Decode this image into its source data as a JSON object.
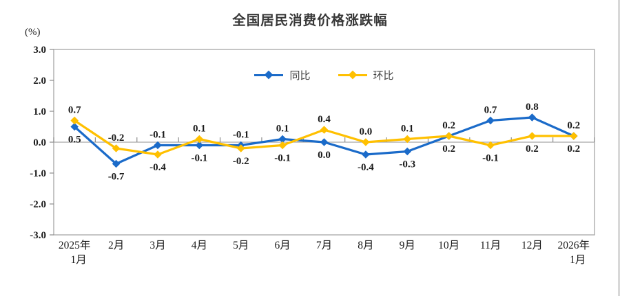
{
  "chart_data": {
    "type": "line",
    "title": "全国居民消费价格涨跌幅",
    "unit_label": "(%)",
    "categories": [
      "2025年\n1月",
      "2月",
      "3月",
      "4月",
      "5月",
      "6月",
      "7月",
      "8月",
      "9月",
      "10月",
      "11月",
      "12月",
      "2026年\n1月"
    ],
    "series": [
      {
        "name": "同比",
        "color": "#1B6BC9",
        "marker": "diamond",
        "values": [
          0.5,
          -0.7,
          -0.1,
          -0.1,
          -0.1,
          0.1,
          0.0,
          -0.4,
          -0.3,
          0.2,
          0.7,
          0.8,
          0.2
        ]
      },
      {
        "name": "环比",
        "color": "#FFC000",
        "marker": "diamond",
        "values": [
          0.7,
          -0.2,
          -0.4,
          0.1,
          -0.2,
          -0.1,
          0.4,
          0.0,
          0.1,
          0.2,
          -0.1,
          0.2,
          0.2
        ]
      }
    ],
    "ylim": [
      -3.0,
      3.0
    ],
    "ytick_step": 1.0,
    "ytick_labels": [
      "3.0",
      "2.0",
      "1.0",
      "0.0",
      "-1.0",
      "-2.0",
      "-3.0"
    ],
    "legend_position": "top-center",
    "grid": "zero-baseline-only",
    "value_labels_decimals": 1
  },
  "colors": {
    "background": "#ffffff",
    "axis": "#A6A6A6",
    "tick": "#8C8C8C",
    "label_text": "#1A1A1A",
    "title_text": "#383838",
    "legend_text": "#404040",
    "right_edge": "#D8D8D8"
  }
}
